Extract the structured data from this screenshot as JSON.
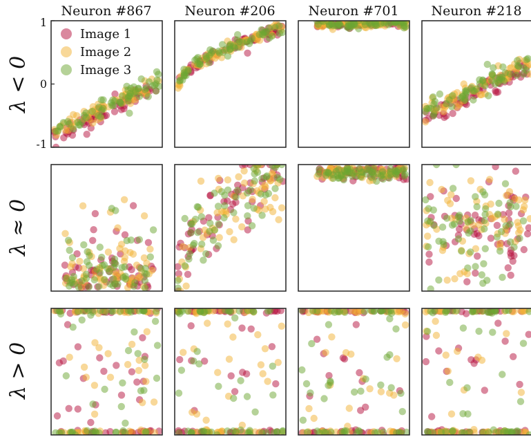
{
  "chart_data": {
    "type": "scatter",
    "column_titles": [
      "Neuron #867",
      "Neuron #206",
      "Neuron #701",
      "Neuron #218"
    ],
    "row_labels": [
      "λ < 0",
      "λ ≈ 0",
      "λ > 0"
    ],
    "ylim": [
      -1,
      1
    ],
    "yticks": [
      {
        "value": 1,
        "label": "1"
      },
      {
        "value": 0,
        "label": "0"
      },
      {
        "value": -1,
        "label": "-1"
      }
    ],
    "legend": {
      "position": "top-left",
      "entries": [
        {
          "name": "Image 1",
          "color": "#b5123e"
        },
        {
          "name": "Image 2",
          "color": "#f2b233"
        },
        {
          "name": "Image 3",
          "color": "#6ba632"
        }
      ]
    },
    "panels": [
      {
        "row": 0,
        "col": 0,
        "pattern": "trend",
        "params": {
          "start": -0.75,
          "end": 0.05,
          "spread": 0.07
        }
      },
      {
        "row": 0,
        "col": 1,
        "pattern": "curve",
        "params": {
          "start": -0.1,
          "end": 0.88,
          "spread": 0.05
        }
      },
      {
        "row": 0,
        "col": 2,
        "pattern": "flat",
        "params": {
          "level": 0.95,
          "spread": 0.03
        }
      },
      {
        "row": 0,
        "col": 3,
        "pattern": "trend",
        "params": {
          "start": -0.45,
          "end": 0.35,
          "spread": 0.09
        }
      },
      {
        "row": 1,
        "col": 0,
        "pattern": "cloud_low",
        "params": {
          "spread": 0.3
        }
      },
      {
        "row": 1,
        "col": 1,
        "pattern": "curve_spread",
        "params": {
          "spread": 0.3
        }
      },
      {
        "row": 1,
        "col": 2,
        "pattern": "top_band",
        "params": {
          "level": 0.95,
          "spread": 0.1
        }
      },
      {
        "row": 1,
        "col": 3,
        "pattern": "cloud_mid",
        "params": {
          "spread": 0.4
        }
      },
      {
        "row": 2,
        "col": 0,
        "pattern": "bimodal",
        "params": {
          "spread": 0.3
        }
      },
      {
        "row": 2,
        "col": 1,
        "pattern": "bimodal",
        "params": {
          "spread": 0.15
        }
      },
      {
        "row": 2,
        "col": 2,
        "pattern": "bimodal",
        "params": {
          "spread": 0.2
        }
      },
      {
        "row": 2,
        "col": 3,
        "pattern": "bimodal",
        "params": {
          "spread": 0.25
        }
      }
    ],
    "points_per_series": 60
  }
}
